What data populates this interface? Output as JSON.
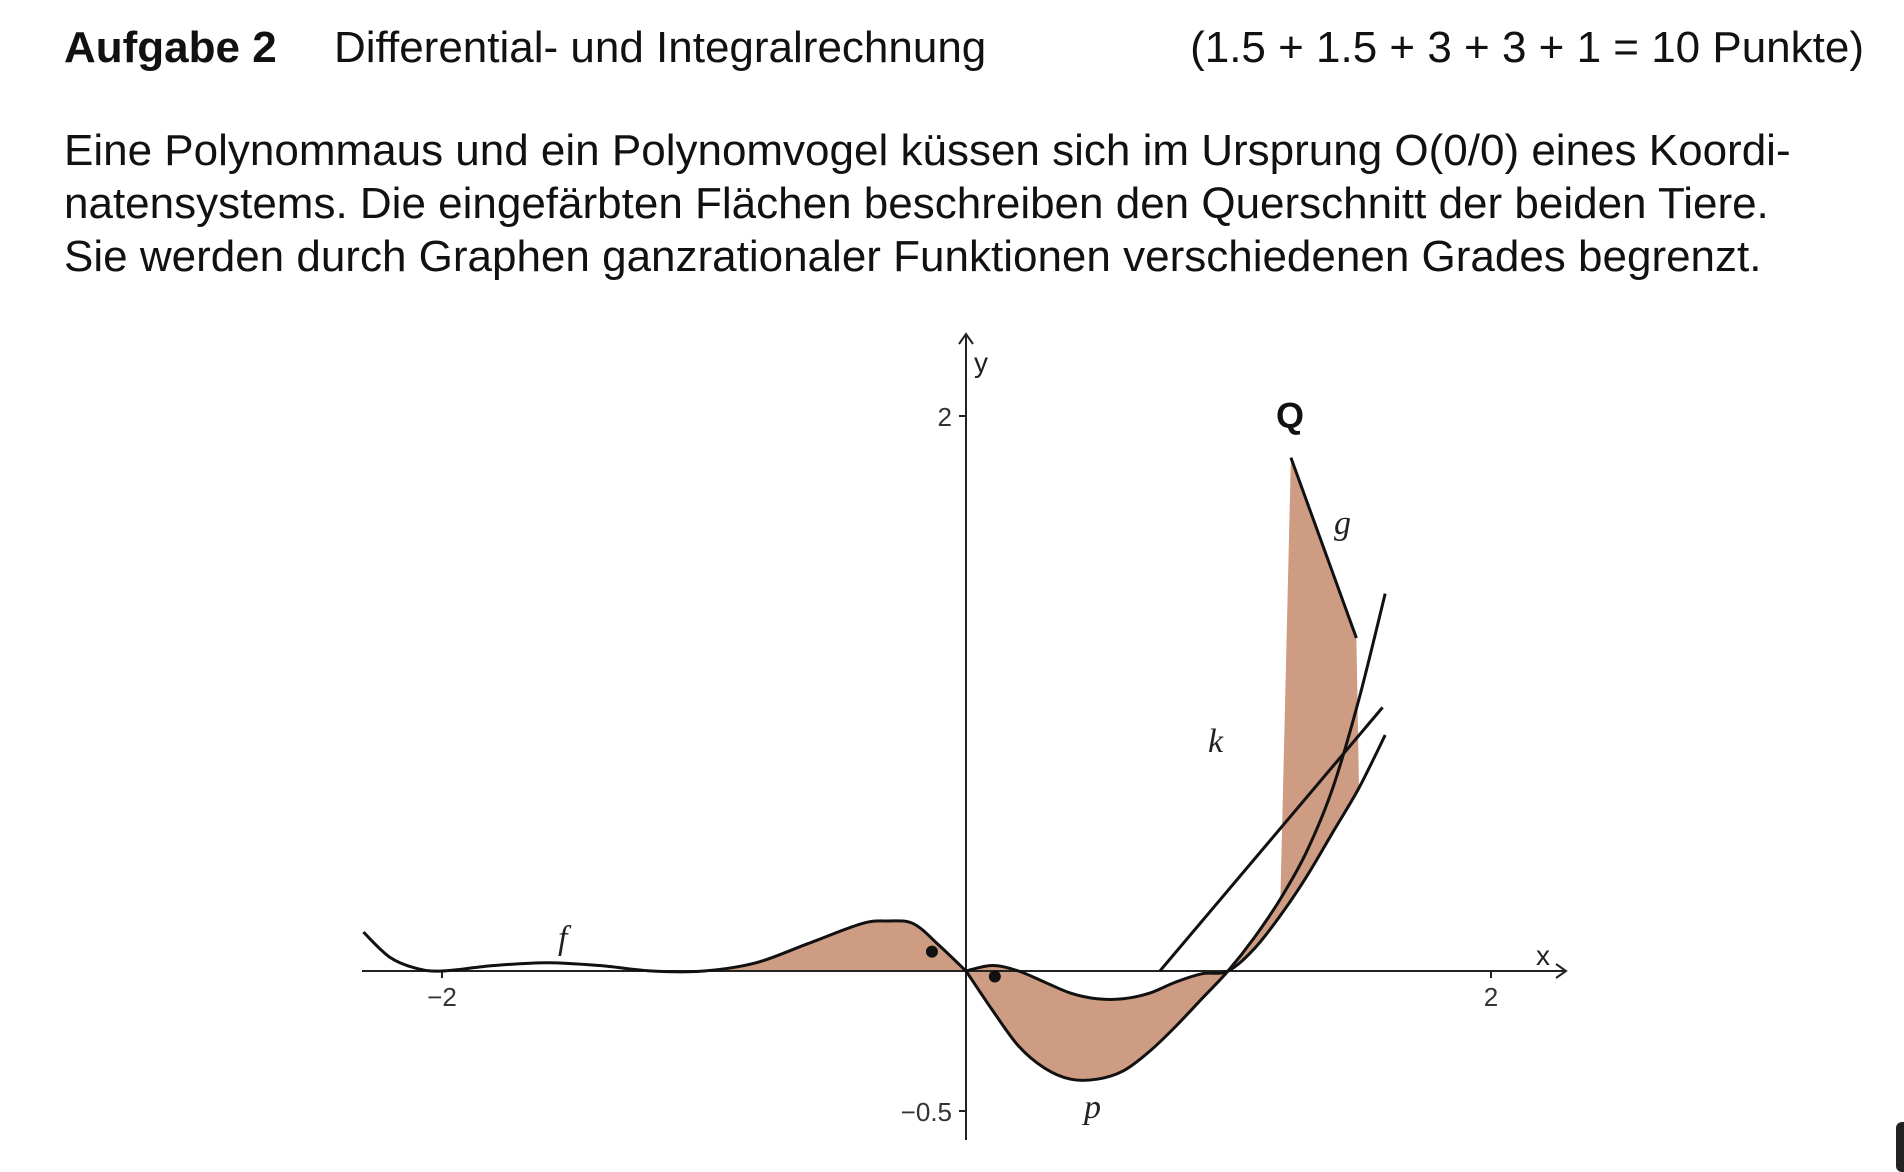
{
  "header": {
    "task_no": "Aufgabe 2",
    "topic": "Differential- und Integralrechnung",
    "points": "(1.5 + 1.5 + 3 + 3 + 1 = 10 Punkte)"
  },
  "intro": {
    "line1": "Eine Polynommaus und ein Polynomvogel küssen sich im Ursprung O(0/0) eines Koordi-",
    "line2": "natensystems. Die eingefärbten Flächen beschreiben den Querschnitt der beiden Tiere.",
    "line3": "Sie werden durch Graphen ganzrationaler Funktionen verschiedenen Grades begrenzt."
  },
  "figure": {
    "fill_color": "#cd9c82",
    "x_axis_label": "x",
    "y_axis_label": "y",
    "x_tick_labels": [
      "−2",
      "2"
    ],
    "y_tick_labels": [
      "2",
      "−0.5"
    ],
    "curve_labels": {
      "f": "f",
      "g": "g",
      "k": "k",
      "p": "p"
    },
    "point_label": "Q"
  },
  "chart_data": {
    "type": "line",
    "xlabel": "x",
    "ylabel": "y",
    "xlim": [
      -2.3,
      2.3
    ],
    "ylim": [
      -0.6,
      2.3
    ],
    "x_ticks": [
      -2,
      2
    ],
    "y_ticks": [
      2,
      -0.5
    ],
    "series": [
      {
        "name": "f",
        "x": [
          -2.3,
          -2.2,
          -2.1,
          -2.0,
          -1.8,
          -1.6,
          -1.4,
          -1.2,
          -1.0,
          -0.8,
          -0.6,
          -0.4,
          -0.3,
          -0.2,
          -0.1,
          0.0
        ],
        "y": [
          0.14,
          0.05,
          0.01,
          0.0,
          0.02,
          0.03,
          0.02,
          0.0,
          0.0,
          0.03,
          0.1,
          0.17,
          0.18,
          0.17,
          0.09,
          0.0
        ]
      },
      {
        "name": "p",
        "x": [
          0.0,
          0.1,
          0.2,
          0.3,
          0.4,
          0.5,
          0.6,
          0.7,
          0.8,
          0.9,
          1.0,
          1.1,
          1.2,
          1.3,
          1.4,
          1.5,
          1.6
        ],
        "y": [
          0.0,
          0.02,
          0.0,
          -0.04,
          -0.08,
          -0.1,
          -0.1,
          -0.08,
          -0.04,
          -0.01,
          0.0,
          0.08,
          0.2,
          0.34,
          0.5,
          0.66,
          0.85
        ]
      },
      {
        "name": "k",
        "x": [
          0.0,
          0.1,
          0.2,
          0.3,
          0.4,
          0.5,
          0.6,
          0.7,
          0.8,
          0.9,
          1.0,
          1.1,
          1.2,
          1.3,
          1.4,
          1.5,
          1.6
        ],
        "y": [
          0.0,
          -0.14,
          -0.27,
          -0.35,
          -0.39,
          -0.39,
          -0.36,
          -0.29,
          -0.2,
          -0.1,
          0.0,
          0.12,
          0.26,
          0.43,
          0.66,
          0.98,
          1.36
        ]
      },
      {
        "name": "g",
        "x": [
          1.24,
          1.49
        ],
        "y": [
          1.85,
          1.2
        ]
      },
      {
        "name": "",
        "x": [
          0.74,
          1.59
        ],
        "y": [
          0.0,
          0.95
        ]
      }
    ],
    "shaded_regions": [
      {
        "between": [
          "f",
          "x-axis"
        ],
        "x_range": [
          -1.0,
          0.0
        ]
      },
      {
        "between": [
          "p",
          "k"
        ],
        "x_range": [
          0.0,
          1.24
        ]
      }
    ],
    "points": [
      {
        "name": "Q",
        "x": 1.24,
        "y": 1.85
      },
      {
        "name": "",
        "x": -0.13,
        "y": 0.07
      },
      {
        "name": "",
        "x": 0.11,
        "y": -0.02
      }
    ],
    "origin": {
      "label": "O(0/0)",
      "x": 0,
      "y": 0
    }
  }
}
